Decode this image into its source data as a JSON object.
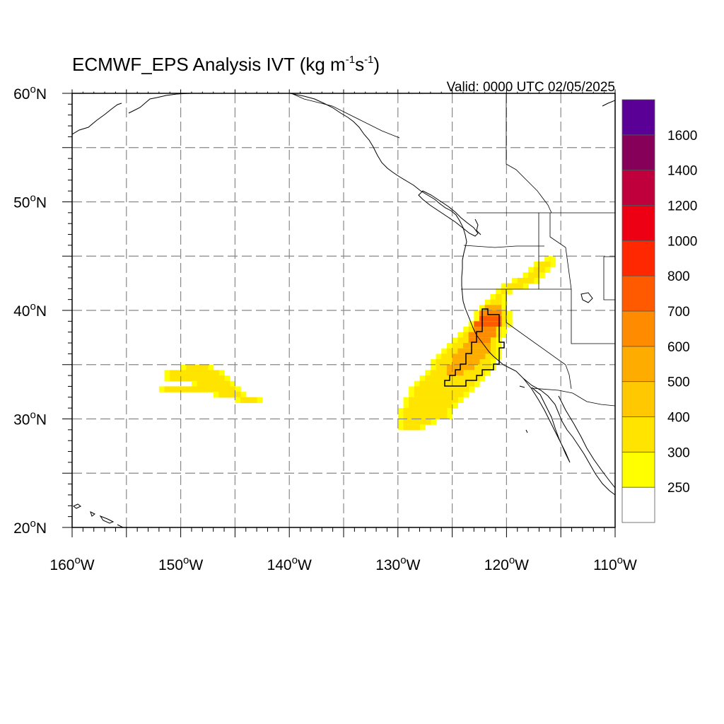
{
  "title": {
    "text": "ECMWF_EPS Analysis IVT (kg m",
    "sup1": "-1",
    "mid": "s",
    "sup2": "-1",
    "close": ")"
  },
  "valid_label": "Valid: 0000 UTC 02/05/2025",
  "chart_data": {
    "type": "heatmap",
    "variable": "IVT",
    "units": "kg m-1 s-1",
    "lon_range": [
      -160,
      -110
    ],
    "lat_range": [
      20,
      60
    ],
    "grid": true,
    "grid_style": "dashed",
    "x_ticks": [
      {
        "value": -160,
        "label": "160",
        "hemi": "W"
      },
      {
        "value": -150,
        "label": "150",
        "hemi": "W"
      },
      {
        "value": -140,
        "label": "140",
        "hemi": "W"
      },
      {
        "value": -130,
        "label": "130",
        "hemi": "W"
      },
      {
        "value": -120,
        "label": "120",
        "hemi": "W"
      },
      {
        "value": -110,
        "label": "110",
        "hemi": "W"
      }
    ],
    "y_ticks": [
      {
        "value": 60,
        "label": "60",
        "hemi": "N"
      },
      {
        "value": 50,
        "label": "50",
        "hemi": "N"
      },
      {
        "value": 40,
        "label": "40",
        "hemi": "N"
      },
      {
        "value": 30,
        "label": "30",
        "hemi": "N"
      },
      {
        "value": 20,
        "label": "20",
        "hemi": "N"
      }
    ],
    "contour_levels": [
      250,
      300,
      400,
      500,
      600,
      700,
      800,
      1000,
      1200,
      1400,
      1600
    ],
    "level_colors": [
      "#ffffff",
      "#ffff00",
      "#ffe400",
      "#ffc800",
      "#ffac00",
      "#ff8c00",
      "#ff5a00",
      "#ff2800",
      "#ee0014",
      "#c0003c",
      "#86005a",
      "#5a0096"
    ],
    "colorbar_labels": [
      "250",
      "300",
      "400",
      "500",
      "600",
      "700",
      "800",
      "1000",
      "1200",
      "1400",
      "1600"
    ],
    "features": [
      {
        "name": "central-pacific-plume",
        "rows": [
          {
            "lat": 34.5,
            "lon": [
              -150,
              -147
            ]
          },
          {
            "lat": 34.0,
            "lon": [
              -151.5,
              -146
            ]
          },
          {
            "lat": 33.5,
            "lon": [
              -151.5,
              -145.5
            ],
            "core": {
              "lon": [
                -148,
                -146.5
              ],
              "v": 350
            }
          },
          {
            "lat": 33.0,
            "lon": [
              -149,
              -145
            ],
            "core": {
              "lon": [
                -148,
                -145.5
              ],
              "v": 350
            }
          },
          {
            "lat": 32.5,
            "lon": [
              -152,
              -144.5
            ],
            "core": {
              "lon": [
                -146,
                -145
              ],
              "v": 350
            }
          },
          {
            "lat": 32.0,
            "lon": [
              -147,
              -144
            ]
          },
          {
            "lat": 31.5,
            "lon": [
              -145,
              -142.5
            ]
          }
        ],
        "peak_ivt": 450
      },
      {
        "name": "california-atmospheric-river",
        "rows": [
          {
            "lat": 44.5,
            "lon": [
              -116.5,
              -115.5
            ]
          },
          {
            "lat": 44.0,
            "lon": [
              -117.5,
              -115.5
            ]
          },
          {
            "lat": 43.5,
            "lon": [
              -118,
              -116
            ]
          },
          {
            "lat": 43.0,
            "lon": [
              -118.5,
              -116.5
            ]
          },
          {
            "lat": 42.5,
            "lon": [
              -119.5,
              -117
            ]
          },
          {
            "lat": 42.0,
            "lon": [
              -120.5,
              -118
            ]
          },
          {
            "lat": 41.5,
            "lon": [
              -121,
              -119.5
            ]
          },
          {
            "lat": 41.0,
            "lon": [
              -121.5,
              -120
            ]
          },
          {
            "lat": 40.5,
            "lon": [
              -122,
              -120
            ]
          },
          {
            "lat": 40.0,
            "lon": [
              -122.5,
              -120
            ],
            "core": {
              "lon": [
                -122,
                -120.5
              ],
              "v": 550
            }
          },
          {
            "lat": 39.5,
            "lon": [
              -123,
              -119.5
            ],
            "core": {
              "lon": [
                -122.5,
                -120.5
              ],
              "v": 650
            }
          },
          {
            "lat": 39.0,
            "lon": [
              -123,
              -119.5
            ],
            "core": {
              "lon": [
                -122.5,
                -120.5
              ],
              "v": 750
            }
          },
          {
            "lat": 38.5,
            "lon": [
              -123.5,
              -119.5
            ],
            "core": {
              "lon": [
                -123,
                -120.5
              ],
              "v": 750
            }
          },
          {
            "lat": 38.0,
            "lon": [
              -124,
              -120
            ],
            "core": {
              "lon": [
                -123,
                -121
              ],
              "v": 650
            }
          },
          {
            "lat": 37.5,
            "lon": [
              -124.5,
              -120
            ],
            "core": {
              "lon": [
                -123.5,
                -121
              ],
              "v": 650
            }
          },
          {
            "lat": 37.0,
            "lon": [
              -125,
              -120.5
            ],
            "core": {
              "lon": [
                -123.5,
                -121.5
              ],
              "v": 650
            }
          },
          {
            "lat": 36.5,
            "lon": [
              -125.5,
              -120.5
            ],
            "core": {
              "lon": [
                -124,
                -121.5
              ],
              "v": 550
            }
          },
          {
            "lat": 36.0,
            "lon": [
              -126,
              -120.5
            ],
            "core": {
              "lon": [
                -124.5,
                -121.5
              ],
              "v": 550
            }
          },
          {
            "lat": 35.5,
            "lon": [
              -126.5,
              -120.5
            ],
            "core": {
              "lon": [
                -125,
                -122
              ],
              "v": 550
            }
          },
          {
            "lat": 35.0,
            "lon": [
              -127,
              -121
            ],
            "core": {
              "lon": [
                -125,
                -122.5
              ],
              "v": 550
            }
          },
          {
            "lat": 34.5,
            "lon": [
              -127,
              -121
            ],
            "core": {
              "lon": [
                -125.5,
                -123
              ],
              "v": 550
            }
          },
          {
            "lat": 34.0,
            "lon": [
              -127.5,
              -121.5
            ],
            "core": {
              "lon": [
                -125.5,
                -124
              ],
              "v": 550
            }
          },
          {
            "lat": 33.5,
            "lon": [
              -128,
              -122
            ]
          },
          {
            "lat": 33.0,
            "lon": [
              -128.5,
              -122.5
            ]
          },
          {
            "lat": 32.5,
            "lon": [
              -129,
              -123
            ]
          },
          {
            "lat": 32.0,
            "lon": [
              -129,
              -123.5
            ]
          },
          {
            "lat": 31.5,
            "lon": [
              -129.5,
              -124
            ]
          },
          {
            "lat": 31.0,
            "lon": [
              -129.5,
              -124.5
            ]
          },
          {
            "lat": 30.5,
            "lon": [
              -130,
              -125
            ]
          },
          {
            "lat": 30.0,
            "lon": [
              -130,
              -125
            ]
          },
          {
            "lat": 29.5,
            "lon": [
              -130,
              -126.5
            ]
          },
          {
            "lat": 29.0,
            "lon": [
              -130,
              -127.5
            ]
          }
        ],
        "peak_ivt": 850
      }
    ]
  }
}
